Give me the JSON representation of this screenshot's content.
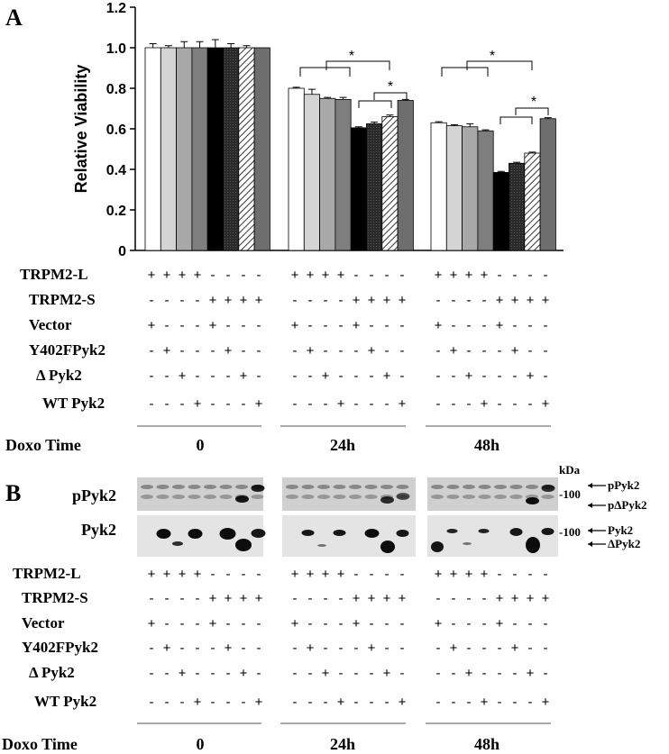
{
  "panel_a_label": "A",
  "panel_b_label": "B",
  "chart_data": {
    "type": "bar",
    "ylabel": "Relative Viability",
    "ylim": [
      0,
      1.2
    ],
    "yticks": [
      "0",
      "0.2",
      "0.4",
      "0.6",
      "0.8",
      "1.0",
      "1.2"
    ],
    "ytick_values": [
      0,
      0.2,
      0.4,
      0.6,
      0.8,
      1.0,
      1.2
    ],
    "groups": [
      {
        "time": "0",
        "values": [
          1.0,
          1.0,
          1.0,
          1.0,
          1.0,
          1.0,
          1.0,
          1.0
        ],
        "errors": [
          0.02,
          0.01,
          0.03,
          0.03,
          0.04,
          0.02,
          0.01,
          0.0
        ]
      },
      {
        "time": "24h",
        "values": [
          0.8,
          0.77,
          0.75,
          0.745,
          0.605,
          0.625,
          0.66,
          0.74
        ],
        "errors": [
          0.005,
          0.025,
          0.005,
          0.01,
          0.005,
          0.008,
          0.008,
          0.005
        ]
      },
      {
        "time": "48h",
        "values": [
          0.63,
          0.615,
          0.61,
          0.59,
          0.385,
          0.43,
          0.48,
          0.65
        ],
        "errors": [
          0.005,
          0.005,
          0.015,
          0.005,
          0.005,
          0.005,
          0.005,
          0.005
        ]
      }
    ],
    "fills": [
      "#ffffff",
      "#d4d4d4",
      "#a8a8a8",
      "#7e7e7e",
      "#000000",
      "#3a3a3a",
      "hatch",
      "#6e6e6e"
    ],
    "significance_marker": "*"
  },
  "conditions": {
    "rows": [
      "TRPM2-L",
      "TRPM2-S",
      "Vector",
      "Y402FPyk2",
      "Δ Pyk2",
      "WT Pyk2"
    ],
    "signs": [
      [
        "+",
        "+",
        "+",
        "+",
        "-",
        "-",
        "-",
        "-"
      ],
      [
        "-",
        "-",
        "-",
        "-",
        "+",
        "+",
        "+",
        "+"
      ],
      [
        "+",
        "-",
        "-",
        "-",
        "+",
        "-",
        "-",
        "-"
      ],
      [
        "-",
        "+",
        "-",
        "-",
        "-",
        "+",
        "-",
        "-"
      ],
      [
        "-",
        "-",
        "+",
        "-",
        "-",
        "-",
        "+",
        "-"
      ],
      [
        "-",
        "-",
        "-",
        "+",
        "-",
        "-",
        "-",
        "+"
      ]
    ]
  },
  "doxo_label": "Doxo Time",
  "time_labels": [
    "0",
    "24h",
    "48h"
  ],
  "blot": {
    "kda_label": "kDa",
    "row1_label": "pPyk2",
    "row2_label": "Pyk2",
    "mw_marker": "-100",
    "row1_arrows": [
      "pPyk2",
      "pΔPyk2"
    ],
    "row2_arrows": [
      "Pyk2",
      "ΔPyk2"
    ]
  }
}
